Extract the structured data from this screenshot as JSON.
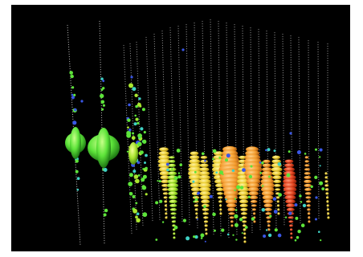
{
  "image": {
    "background_color": "#000000",
    "frame_color": "#ffffff",
    "string_color": "#b8b8b8",
    "marker_colors": {
      "green": "#5de43a",
      "lime": "#a9e62f",
      "yellow": "#efd238",
      "orange": "#f39b2c",
      "red": "#e2431e",
      "blue": "#3a57e6",
      "cyan": "#3fd1c4"
    }
  }
}
